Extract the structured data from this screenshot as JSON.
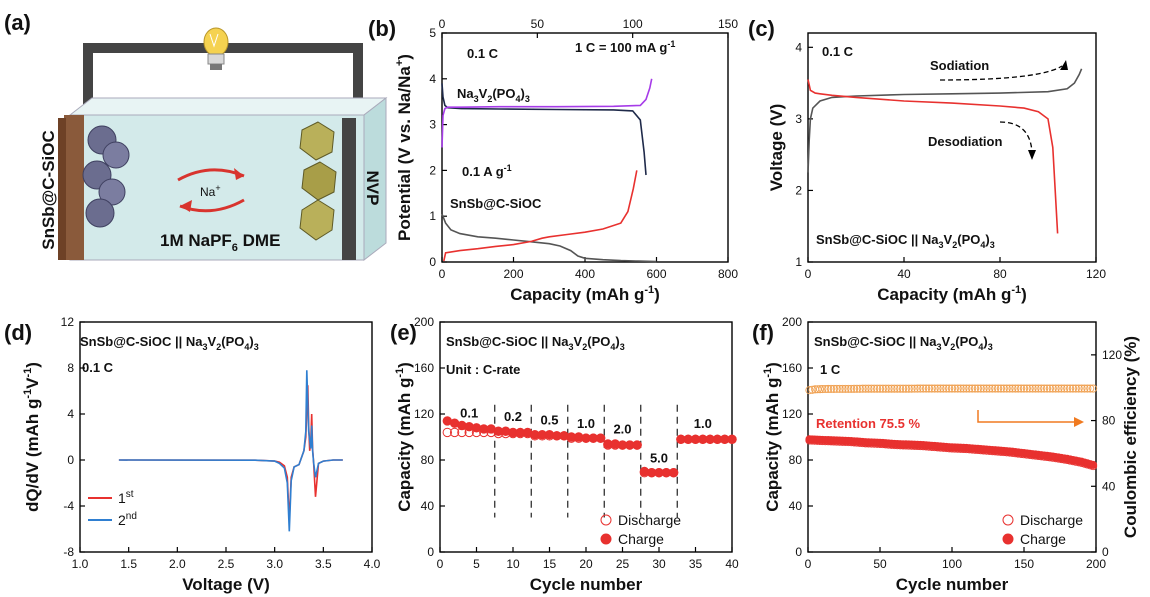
{
  "figure": {
    "panels": {
      "a": {
        "label": "(a)",
        "left_electrode_label": "SnSb@C-SiOC",
        "right_electrode_label": "NVP",
        "ion_label": "Na",
        "ion_charge": "+",
        "electrolyte_pre": "1M NaPF",
        "electrolyte_sub": "6",
        "electrolyte_post": " DME",
        "icon": "light-bulb-icon"
      },
      "b": {
        "label": "(b)",
        "rate_label": "0.1 C",
        "c_definition": "1 C = 100 mA g",
        "c_definition_sup": "-1",
        "cathode_label_parts": [
          "Na",
          "3",
          "V",
          "2",
          "(PO",
          "4",
          ")",
          "3"
        ],
        "anode_rate_label": "0.1 A g",
        "anode_rate_sup": "-1",
        "anode_label": "SnSb@C-SiOC"
      },
      "c": {
        "label": "(c)",
        "rate_label": "0.1 C",
        "sodiation_label": "Sodiation",
        "desodiation_label": "Desodiation",
        "cell_label_parts": [
          "SnSb@C-SiOC || Na",
          "3",
          "V",
          "2",
          "(PO",
          "4",
          ")",
          "3"
        ]
      },
      "d": {
        "label": "(d)",
        "cell_label_parts": [
          "SnSb@C-SiOC || Na",
          "3",
          "V",
          "2",
          "(PO",
          "4",
          ")",
          "3"
        ],
        "rate_label": "0.1 C",
        "legend": [
          {
            "base": "1",
            "sup": "st",
            "color": "#e8312f"
          },
          {
            "base": "2",
            "sup": "nd",
            "color": "#2f7fd1"
          }
        ]
      },
      "e": {
        "label": "(e)",
        "cell_label_parts": [
          "SnSb@C-SiOC || Na",
          "3",
          "V",
          "2",
          "(PO",
          "4",
          ")",
          "3"
        ],
        "unit_label": "Unit : C-rate",
        "rate_labels": [
          "0.1",
          "0.2",
          "0.5",
          "1.0",
          "2.0",
          "5.0",
          "1.0"
        ],
        "legend": [
          "Discharge",
          "Charge"
        ]
      },
      "f": {
        "label": "(f)",
        "cell_label_parts": [
          "SnSb@C-SiOC || Na",
          "3",
          "V",
          "2",
          "(PO",
          "4",
          ")",
          "3"
        ],
        "rate_label": "1 C",
        "retention_label": "Retention 75.5 %",
        "legend": [
          "Discharge",
          "Charge"
        ]
      }
    }
  },
  "chart_data": [
    {
      "panel": "b",
      "type": "line",
      "xlabel": "Capacity (mAh g",
      "xlabel_sup": "-1",
      "xlabel_end": ")",
      "ylabel": "Potential (V vs. Na/Na",
      "ylabel_sup": "+",
      "ylabel_end": ")",
      "xlim": [
        0,
        800
      ],
      "xlim_top": [
        0,
        150
      ],
      "ylim": [
        0,
        5
      ],
      "xticks": [
        0,
        200,
        400,
        600,
        800
      ],
      "xticks_top": [
        0,
        50,
        100,
        150
      ],
      "yticks": [
        0,
        1,
        2,
        3,
        4,
        5
      ],
      "series": [
        {
          "color": "#1f2a4a",
          "axis": "top",
          "x": [
            0,
            0.5,
            1.5,
            3,
            10,
            30,
            60,
            90,
            100,
            104,
            106,
            107
          ],
          "y": [
            3.9,
            3.6,
            3.42,
            3.37,
            3.35,
            3.34,
            3.33,
            3.32,
            3.3,
            3.1,
            2.4,
            1.9
          ]
        },
        {
          "color": "#a63be8",
          "axis": "top",
          "x": [
            0,
            0.5,
            1.5,
            3,
            10,
            30,
            60,
            90,
            104,
            107,
            109,
            110
          ],
          "y": [
            2.5,
            3.2,
            3.35,
            3.38,
            3.38,
            3.39,
            3.39,
            3.4,
            3.42,
            3.55,
            3.8,
            4.0
          ]
        },
        {
          "color": "#555555",
          "axis": "bottom",
          "x": [
            0,
            10,
            25,
            50,
            100,
            150,
            200,
            250,
            300,
            330,
            360,
            380,
            400,
            450,
            500,
            550,
            600
          ],
          "y": [
            1.05,
            0.85,
            0.7,
            0.62,
            0.55,
            0.52,
            0.48,
            0.44,
            0.4,
            0.35,
            0.25,
            0.13,
            0.08,
            0.05,
            0.03,
            0.02,
            0.01
          ]
        },
        {
          "color": "#e8312f",
          "axis": "bottom",
          "x": [
            5,
            10,
            50,
            100,
            150,
            200,
            250,
            280,
            300,
            350,
            400,
            450,
            500,
            520,
            535,
            545
          ],
          "y": [
            0.02,
            0.2,
            0.25,
            0.29,
            0.34,
            0.38,
            0.45,
            0.52,
            0.55,
            0.6,
            0.65,
            0.72,
            0.85,
            1.1,
            1.6,
            2.0
          ]
        }
      ]
    },
    {
      "panel": "c",
      "type": "line",
      "xlabel": "Capacity (mAh g",
      "xlabel_sup": "-1",
      "xlabel_end": ")",
      "ylabel": "Voltage (V)",
      "xlim": [
        0,
        120
      ],
      "ylim": [
        1,
        4.2
      ],
      "xticks": [
        0,
        40,
        80,
        120
      ],
      "yticks": [
        1,
        2,
        3,
        4
      ],
      "series": [
        {
          "color": "#555555",
          "x": [
            0,
            0.5,
            1,
            2,
            5,
            10,
            20,
            40,
            60,
            80,
            100,
            108,
            111,
            113,
            114
          ],
          "y": [
            2.25,
            2.7,
            3.0,
            3.15,
            3.25,
            3.3,
            3.32,
            3.34,
            3.35,
            3.36,
            3.38,
            3.42,
            3.5,
            3.62,
            3.7
          ]
        },
        {
          "color": "#e8312f",
          "x": [
            0,
            1,
            3,
            5,
            10,
            20,
            40,
            60,
            80,
            90,
            96,
            100,
            102,
            103,
            104
          ],
          "y": [
            3.55,
            3.4,
            3.36,
            3.35,
            3.33,
            3.3,
            3.25,
            3.22,
            3.18,
            3.15,
            3.1,
            3.0,
            2.6,
            2.0,
            1.4
          ]
        }
      ]
    },
    {
      "panel": "d",
      "type": "line",
      "xlabel": "Voltage (V)",
      "ylabel": "dQ/dV (mAh g",
      "ylabel_sup": "-1",
      "ylabel_mid": "V",
      "ylabel_sup2": "-1",
      "ylabel_end": ")",
      "xlim": [
        1.0,
        4.0
      ],
      "ylim": [
        -8,
        12
      ],
      "xticks": [
        1.0,
        1.5,
        2.0,
        2.5,
        3.0,
        3.5,
        4.0
      ],
      "yticks": [
        -8,
        -4,
        0,
        4,
        8,
        12
      ],
      "series": [
        {
          "name": "1st",
          "color": "#e8312f",
          "x": [
            1.4,
            2.8,
            3.0,
            3.05,
            3.1,
            3.13,
            3.15,
            3.17,
            3.2,
            3.25,
            3.3,
            3.32,
            3.34,
            3.35,
            3.36,
            3.37,
            3.38,
            3.39,
            3.4,
            3.42,
            3.45,
            3.5,
            3.6,
            3.7
          ],
          "y": [
            0,
            -0.02,
            -0.1,
            -0.2,
            -0.5,
            -1.5,
            -5.3,
            -1.5,
            -0.6,
            -0.4,
            0.8,
            2.0,
            6.5,
            3.0,
            0.8,
            1.5,
            4.0,
            1.0,
            -0.2,
            -3.2,
            -0.3,
            -0.1,
            0,
            0
          ]
        },
        {
          "name": "2nd",
          "color": "#2f7fd1",
          "x": [
            1.4,
            2.8,
            3.0,
            3.05,
            3.1,
            3.13,
            3.15,
            3.17,
            3.2,
            3.25,
            3.3,
            3.32,
            3.33,
            3.35,
            3.37,
            3.38,
            3.39,
            3.4,
            3.42,
            3.45,
            3.5,
            3.6,
            3.7
          ],
          "y": [
            0,
            -0.02,
            -0.1,
            -0.3,
            -0.7,
            -2.0,
            -6.2,
            -1.8,
            -0.6,
            -0.4,
            0.8,
            2.5,
            7.8,
            2.5,
            1.0,
            3.0,
            0.8,
            -0.2,
            -1.5,
            -0.3,
            -0.1,
            0,
            0
          ]
        }
      ]
    },
    {
      "panel": "e",
      "type": "scatter",
      "xlabel": "Cycle number",
      "ylabel": "Capacity (mAh g",
      "ylabel_sup": "-1",
      "ylabel_end": ")",
      "xlim": [
        0,
        40
      ],
      "ylim": [
        0,
        200
      ],
      "xticks": [
        0,
        5,
        10,
        15,
        20,
        25,
        30,
        35,
        40
      ],
      "yticks": [
        0,
        40,
        80,
        120,
        160,
        200
      ],
      "dividers": [
        7.5,
        12.5,
        17.5,
        22.5,
        27.5,
        32.5
      ],
      "rate_label_positions": [
        [
          4,
          117
        ],
        [
          10,
          114
        ],
        [
          15,
          111
        ],
        [
          20,
          108
        ],
        [
          25,
          103
        ],
        [
          30,
          78
        ],
        [
          36,
          108
        ]
      ],
      "series": [
        {
          "name": "Discharge",
          "color": "#e8312f",
          "style": "open",
          "x": [
            1,
            2,
            3,
            4,
            5,
            6,
            7,
            8,
            9,
            10,
            11,
            12,
            13,
            14,
            15,
            16,
            17,
            18,
            19,
            20,
            21,
            22,
            23,
            24,
            25,
            26,
            27,
            28,
            29,
            30,
            31,
            32,
            33,
            34,
            35,
            36,
            37,
            38,
            39,
            40
          ],
          "y": [
            104,
            104,
            104,
            104,
            104,
            104,
            104,
            103,
            103,
            103,
            103,
            103,
            101,
            101,
            101,
            101,
            101,
            99,
            99,
            99,
            99,
            99,
            93,
            93,
            93,
            93,
            93,
            69,
            69,
            69,
            69,
            69,
            98,
            98,
            98,
            98,
            98,
            98,
            98,
            98
          ]
        },
        {
          "name": "Charge",
          "color": "#e8312f",
          "style": "filled",
          "x": [
            1,
            2,
            3,
            4,
            5,
            6,
            7,
            8,
            9,
            10,
            11,
            12,
            13,
            14,
            15,
            16,
            17,
            18,
            19,
            20,
            21,
            22,
            23,
            24,
            25,
            26,
            27,
            28,
            29,
            30,
            31,
            32,
            33,
            34,
            35,
            36,
            37,
            38,
            39,
            40
          ],
          "y": [
            114,
            112,
            110,
            109,
            108,
            107,
            107,
            105,
            105,
            104,
            104,
            104,
            102,
            102,
            102,
            101,
            101,
            100,
            100,
            99,
            99,
            99,
            94,
            94,
            93,
            93,
            93,
            70,
            69,
            69,
            69,
            69,
            98,
            98,
            98,
            98,
            98,
            98,
            98,
            98
          ]
        }
      ]
    },
    {
      "panel": "f",
      "type": "scatter",
      "xlabel": "Cycle number",
      "ylabel": "Capacity (mAh g",
      "ylabel_sup": "-1",
      "ylabel_end": ")",
      "ylabel_right": "Coulombic efficiency (%)",
      "xlim": [
        0,
        200
      ],
      "ylim": [
        0,
        200
      ],
      "ylim_right": [
        0,
        140
      ],
      "xticks": [
        0,
        50,
        100,
        150,
        200
      ],
      "yticks": [
        0,
        40,
        80,
        120,
        160,
        200
      ],
      "yticks_right": [
        0,
        40,
        80,
        120
      ],
      "series": [
        {
          "name": "Discharge",
          "color": "#e8312f",
          "style": "open",
          "x": [
            1,
            10,
            20,
            30,
            40,
            50,
            60,
            70,
            80,
            90,
            100,
            110,
            120,
            130,
            140,
            150,
            160,
            170,
            180,
            190,
            200
          ],
          "y": [
            97,
            96.5,
            96,
            95.5,
            94.5,
            94,
            93,
            92.5,
            92,
            91,
            90,
            89.5,
            88.5,
            87.5,
            86.5,
            85,
            83.5,
            82,
            80,
            77.5,
            74
          ]
        },
        {
          "name": "Charge",
          "color": "#e8312f",
          "style": "filled",
          "x": [
            1,
            10,
            20,
            30,
            40,
            50,
            60,
            70,
            80,
            90,
            100,
            110,
            120,
            130,
            140,
            150,
            160,
            170,
            180,
            190,
            200
          ],
          "y": [
            98,
            97.5,
            97,
            96.5,
            95.5,
            95,
            94,
            93.5,
            93,
            92,
            91,
            90.5,
            89.5,
            88.5,
            87.5,
            86,
            84.5,
            83,
            81,
            78.5,
            75
          ]
        },
        {
          "name": "Coulombic efficiency",
          "color": "#f0a050",
          "style": "open",
          "axis": "right",
          "x": [
            1,
            5,
            10,
            20,
            30,
            40,
            50,
            60,
            70,
            80,
            90,
            100,
            110,
            120,
            130,
            140,
            150,
            160,
            170,
            180,
            190,
            200
          ],
          "y": [
            98.5,
            99,
            99.2,
            99.3,
            99.3,
            99.4,
            99.4,
            99.4,
            99.4,
            99.5,
            99.5,
            99.5,
            99.5,
            99.5,
            99.5,
            99.5,
            99.5,
            99.5,
            99.5,
            99.5,
            99.5,
            99.5
          ]
        }
      ]
    }
  ]
}
